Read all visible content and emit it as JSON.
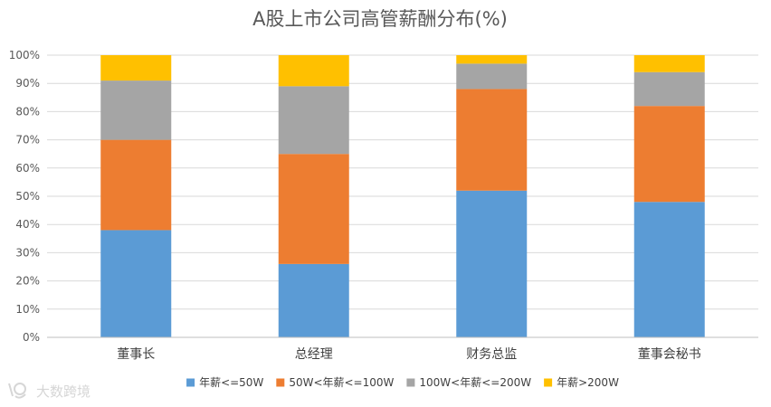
{
  "chart_data": {
    "type": "bar",
    "stacked": true,
    "title": "A股上市公司高管薪酬分布(%)",
    "categories": [
      "董事长",
      "总经理",
      "财务总监",
      "董事会秘书"
    ],
    "series": [
      {
        "name": "年薪<=50W",
        "color": "#5b9bd5",
        "values": [
          38,
          26,
          52,
          48
        ]
      },
      {
        "name": "50W<年薪<=100W",
        "color": "#ed7d31",
        "values": [
          32,
          39,
          36,
          34
        ]
      },
      {
        "name": "100W<年薪<=200W",
        "color": "#a5a5a5",
        "values": [
          21,
          24,
          9,
          12
        ]
      },
      {
        "name": "年薪>200W",
        "color": "#ffc000",
        "values": [
          9,
          11,
          3,
          6
        ]
      }
    ],
    "ylim": [
      0,
      100
    ],
    "yticks": [
      "0%",
      "10%",
      "20%",
      "30%",
      "40%",
      "50%",
      "60%",
      "70%",
      "80%",
      "90%",
      "100%"
    ],
    "xlabel": "",
    "ylabel": "",
    "grid": true,
    "legend_position": "bottom"
  },
  "watermark": {
    "text": "大数跨境"
  }
}
